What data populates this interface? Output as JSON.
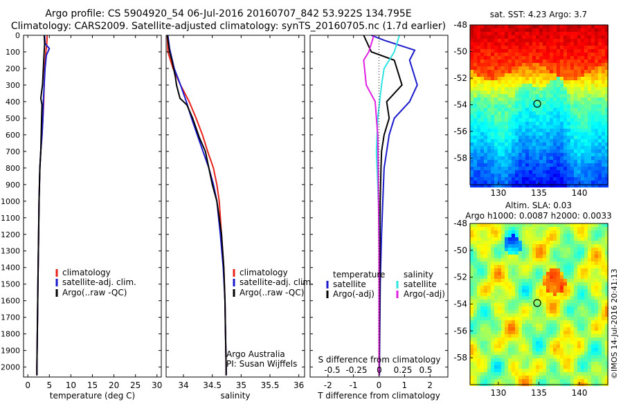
{
  "header": {
    "line1": "Argo profile: CS 5904920_54 06-Jul-2016 20160707_842 53.922S 134.795E",
    "line2": "Climatology: CARS2009. Satellite-adjusted climatology: synTS_20160705.nc (1.7d earlier)"
  },
  "watermark": "©IMOS 14-Jul-2016 20:41:13",
  "colors": {
    "climatology": "#e8221a",
    "satellite": "#1a1acc",
    "argo": "#000000",
    "salinity_sat": "#2fe3e3",
    "salinity_argo": "#e020e0"
  },
  "chart_data": [
    {
      "id": "temperature",
      "type": "line",
      "xlabel": "temperature (deg C)",
      "ylabel": "",
      "xlim": [
        -1,
        31
      ],
      "ylim": [
        2060,
        0
      ],
      "y_inverted": true,
      "xticks": [
        "0",
        "5",
        "10",
        "15",
        "20",
        "25",
        "30"
      ],
      "xtick_values": [
        0,
        5,
        10,
        15,
        20,
        25,
        30
      ],
      "yticks": [
        "0",
        "100",
        "200",
        "300",
        "400",
        "500",
        "600",
        "700",
        "800",
        "900",
        "1000",
        "1100",
        "1200",
        "1300",
        "1400",
        "1500",
        "1600",
        "1700",
        "1800",
        "1900",
        "2000"
      ],
      "ytick_values": [
        0,
        100,
        200,
        300,
        400,
        500,
        600,
        700,
        800,
        900,
        1000,
        1100,
        1200,
        1300,
        1400,
        1500,
        1600,
        1700,
        1800,
        1900,
        2000
      ],
      "legend": [
        "climatology",
        "satellite-adj. clim.",
        "Argo(..raw -QC)"
      ],
      "legend_position": "center-right",
      "series": [
        {
          "name": "climatology",
          "color": "#e8221a",
          "points": [
            [
              4.5,
              0
            ],
            [
              4.4,
              50
            ],
            [
              4.2,
              100
            ],
            [
              3.9,
              200
            ],
            [
              3.8,
              300
            ],
            [
              3.7,
              400
            ],
            [
              3.5,
              500
            ],
            [
              3.3,
              600
            ],
            [
              3.0,
              700
            ],
            [
              2.8,
              800
            ],
            [
              2.7,
              900
            ],
            [
              2.6,
              1000
            ],
            [
              2.5,
              1200
            ],
            [
              2.4,
              1400
            ],
            [
              2.3,
              1600
            ],
            [
              2.2,
              1800
            ],
            [
              2.1,
              2000
            ],
            [
              2.1,
              2050
            ]
          ]
        },
        {
          "name": "satellite-adj. clim.",
          "color": "#1a1acc",
          "points": [
            [
              3.9,
              0
            ],
            [
              4.0,
              50
            ],
            [
              5.0,
              80
            ],
            [
              4.3,
              120
            ],
            [
              4.0,
              200
            ],
            [
              3.8,
              300
            ],
            [
              3.6,
              400
            ],
            [
              3.5,
              500
            ],
            [
              3.3,
              600
            ],
            [
              3.0,
              700
            ],
            [
              2.8,
              800
            ],
            [
              2.7,
              900
            ],
            [
              2.6,
              1000
            ],
            [
              2.5,
              1200
            ],
            [
              2.4,
              1400
            ],
            [
              2.3,
              1600
            ],
            [
              2.2,
              1800
            ],
            [
              2.1,
              2000
            ],
            [
              2.1,
              2050
            ]
          ]
        },
        {
          "name": "Argo(..raw -QC)",
          "color": "#000000",
          "points": [
            [
              3.8,
              0
            ],
            [
              3.9,
              50
            ],
            [
              3.8,
              100
            ],
            [
              3.6,
              200
            ],
            [
              3.4,
              300
            ],
            [
              3.0,
              380
            ],
            [
              3.3,
              420
            ],
            [
              3.2,
              500
            ],
            [
              3.1,
              600
            ],
            [
              3.0,
              700
            ],
            [
              2.8,
              800
            ],
            [
              2.7,
              900
            ],
            [
              2.6,
              1000
            ],
            [
              2.5,
              1200
            ],
            [
              2.4,
              1400
            ],
            [
              2.3,
              1600
            ],
            [
              2.2,
              1800
            ],
            [
              2.1,
              2000
            ],
            [
              2.1,
              2050
            ]
          ]
        }
      ]
    },
    {
      "id": "salinity",
      "type": "line",
      "xlabel": "salinity",
      "xlim": [
        33.7,
        36.1
      ],
      "ylim": [
        2060,
        0
      ],
      "y_inverted": true,
      "xticks": [
        "34",
        "34.5",
        "35",
        "35.5",
        "36"
      ],
      "xtick_values": [
        34,
        34.5,
        35,
        35.5,
        36
      ],
      "legend": [
        "climatology",
        "satellite-adj. clim.",
        "Argo(..raw -QC)"
      ],
      "legend_position": "center-right",
      "annotation_lines": [
        "Argo Australia",
        "PI: Susan Wijffels"
      ],
      "series": [
        {
          "name": "climatology",
          "color": "#e8221a",
          "points": [
            [
              33.72,
              0
            ],
            [
              33.73,
              100
            ],
            [
              33.82,
              200
            ],
            [
              33.95,
              300
            ],
            [
              34.1,
              400
            ],
            [
              34.22,
              500
            ],
            [
              34.33,
              600
            ],
            [
              34.42,
              700
            ],
            [
              34.52,
              800
            ],
            [
              34.58,
              900
            ],
            [
              34.62,
              1000
            ],
            [
              34.66,
              1200
            ],
            [
              34.7,
              1400
            ],
            [
              34.72,
              1600
            ],
            [
              34.73,
              1800
            ],
            [
              34.74,
              2000
            ],
            [
              34.74,
              2050
            ]
          ]
        },
        {
          "name": "satellite-adj. clim.",
          "color": "#1a1acc",
          "points": [
            [
              33.73,
              0
            ],
            [
              33.76,
              80
            ],
            [
              33.84,
              200
            ],
            [
              33.95,
              300
            ],
            [
              34.05,
              400
            ],
            [
              34.14,
              500
            ],
            [
              34.24,
              600
            ],
            [
              34.34,
              700
            ],
            [
              34.44,
              800
            ],
            [
              34.52,
              900
            ],
            [
              34.58,
              1000
            ],
            [
              34.64,
              1200
            ],
            [
              34.69,
              1400
            ],
            [
              34.72,
              1600
            ],
            [
              34.73,
              1800
            ],
            [
              34.74,
              2000
            ],
            [
              34.74,
              2050
            ]
          ]
        },
        {
          "name": "Argo(..raw -QC)",
          "color": "#000000",
          "points": [
            [
              33.72,
              0
            ],
            [
              33.76,
              100
            ],
            [
              33.8,
              150
            ],
            [
              33.86,
              250
            ],
            [
              33.88,
              300
            ],
            [
              33.94,
              380
            ],
            [
              34.06,
              420
            ],
            [
              34.16,
              500
            ],
            [
              34.28,
              620
            ],
            [
              34.38,
              700
            ],
            [
              34.44,
              800
            ],
            [
              34.5,
              900
            ],
            [
              34.58,
              1000
            ],
            [
              34.62,
              1100
            ],
            [
              34.66,
              1200
            ],
            [
              34.7,
              1400
            ],
            [
              34.72,
              1600
            ],
            [
              34.73,
              1800
            ],
            [
              34.74,
              2000
            ],
            [
              34.74,
              2050
            ]
          ]
        }
      ]
    },
    {
      "id": "difference",
      "type": "line",
      "xlabel": "T difference from climatology",
      "xlabel_top": "S difference from climatology",
      "xlim": [
        -2.7,
        2.7
      ],
      "ylim": [
        2060,
        0
      ],
      "y_inverted": true,
      "xticks": [
        "-2",
        "-1",
        "0",
        "1",
        "2"
      ],
      "xtick_values": [
        -2,
        -1,
        0,
        1,
        2
      ],
      "xticks_top": [
        "-0.5",
        "-0.25",
        "0",
        "0.25",
        "0.5"
      ],
      "legend_left_title": "temperature",
      "legend_left": [
        "satellite",
        "Argo(-adj)"
      ],
      "legend_right_title": "salinity",
      "legend_right": [
        "satellite",
        "Argo(-adj)"
      ],
      "series": [
        {
          "name": "T satellite",
          "color": "#1a1acc",
          "points": [
            [
              -0.3,
              0
            ],
            [
              0.2,
              30
            ],
            [
              1.4,
              90
            ],
            [
              1.2,
              150
            ],
            [
              1.5,
              300
            ],
            [
              1.2,
              400
            ],
            [
              0.6,
              500
            ],
            [
              0.4,
              600
            ],
            [
              0.3,
              700
            ],
            [
              0.2,
              800
            ],
            [
              0.15,
              1000
            ],
            [
              0.1,
              1200
            ],
            [
              0.05,
              1500
            ],
            [
              0.03,
              1800
            ],
            [
              0.02,
              2000
            ],
            [
              0.02,
              2050
            ]
          ]
        },
        {
          "name": "T Argo",
          "color": "#000000",
          "points": [
            [
              -0.6,
              0
            ],
            [
              -0.3,
              100
            ],
            [
              0.6,
              150
            ],
            [
              0.9,
              300
            ],
            [
              0.3,
              400
            ],
            [
              0.4,
              500
            ],
            [
              0.2,
              600
            ],
            [
              0.1,
              700
            ],
            [
              0.08,
              800
            ],
            [
              0.05,
              1000
            ],
            [
              0.04,
              1200
            ],
            [
              0.03,
              1500
            ],
            [
              0.02,
              1800
            ],
            [
              0.01,
              2000
            ],
            [
              0.01,
              2050
            ]
          ]
        },
        {
          "name": "S satellite",
          "color": "#2fe3e3",
          "points": [
            [
              0.8,
              0
            ],
            [
              0.6,
              100
            ],
            [
              0.2,
              200
            ],
            [
              0.1,
              300
            ],
            [
              -0.05,
              500
            ],
            [
              -0.1,
              700
            ],
            [
              -0.05,
              900
            ],
            [
              0.0,
              1100
            ],
            [
              0.0,
              1300
            ],
            [
              0.0,
              1500
            ],
            [
              0.0,
              1800
            ],
            [
              0.0,
              2000
            ],
            [
              0.0,
              2050
            ]
          ]
        },
        {
          "name": "S Argo",
          "color": "#e020e0",
          "points": [
            [
              -0.2,
              0
            ],
            [
              -0.4,
              100
            ],
            [
              -0.6,
              150
            ],
            [
              -0.5,
              300
            ],
            [
              -0.15,
              400
            ],
            [
              -0.1,
              500
            ],
            [
              -0.05,
              600
            ],
            [
              -0.03,
              800
            ],
            [
              -0.02,
              1000
            ],
            [
              0.0,
              1300
            ],
            [
              0.0,
              2000
            ],
            [
              0.0,
              2050
            ]
          ]
        }
      ]
    },
    {
      "id": "sst_map",
      "type": "heatmap",
      "title": "sat. SST: 4.23  Argo: 3.7",
      "xticks": [
        "130",
        "135",
        "140"
      ],
      "xtick_values": [
        130,
        135,
        140
      ],
      "yticks": [
        "-48",
        "-50",
        "-52",
        "-54",
        "-56",
        "-58"
      ],
      "ytick_values": [
        -48,
        -50,
        -52,
        -54,
        -56,
        -58
      ],
      "xlim": [
        126.5,
        143.5
      ],
      "ylim": [
        -60,
        -48
      ],
      "marker": {
        "lon": 134.795,
        "lat": -53.922
      },
      "colormap": "jet"
    },
    {
      "id": "sla_map",
      "type": "heatmap",
      "title_line1": "Altim. SLA: 0.03",
      "title_line2": "Argo h1000: 0.0087  h2000: 0.0033",
      "xticks": [
        "130",
        "135",
        "140"
      ],
      "xtick_values": [
        130,
        135,
        140
      ],
      "yticks": [
        "-48",
        "-50",
        "-52",
        "-54",
        "-56",
        "-58"
      ],
      "ytick_values": [
        -48,
        -50,
        -52,
        -54,
        -56,
        -58
      ],
      "xlim": [
        126.5,
        143.5
      ],
      "ylim": [
        -60,
        -48
      ],
      "marker": {
        "lon": 134.795,
        "lat": -53.922
      },
      "colormap": "jet"
    }
  ]
}
